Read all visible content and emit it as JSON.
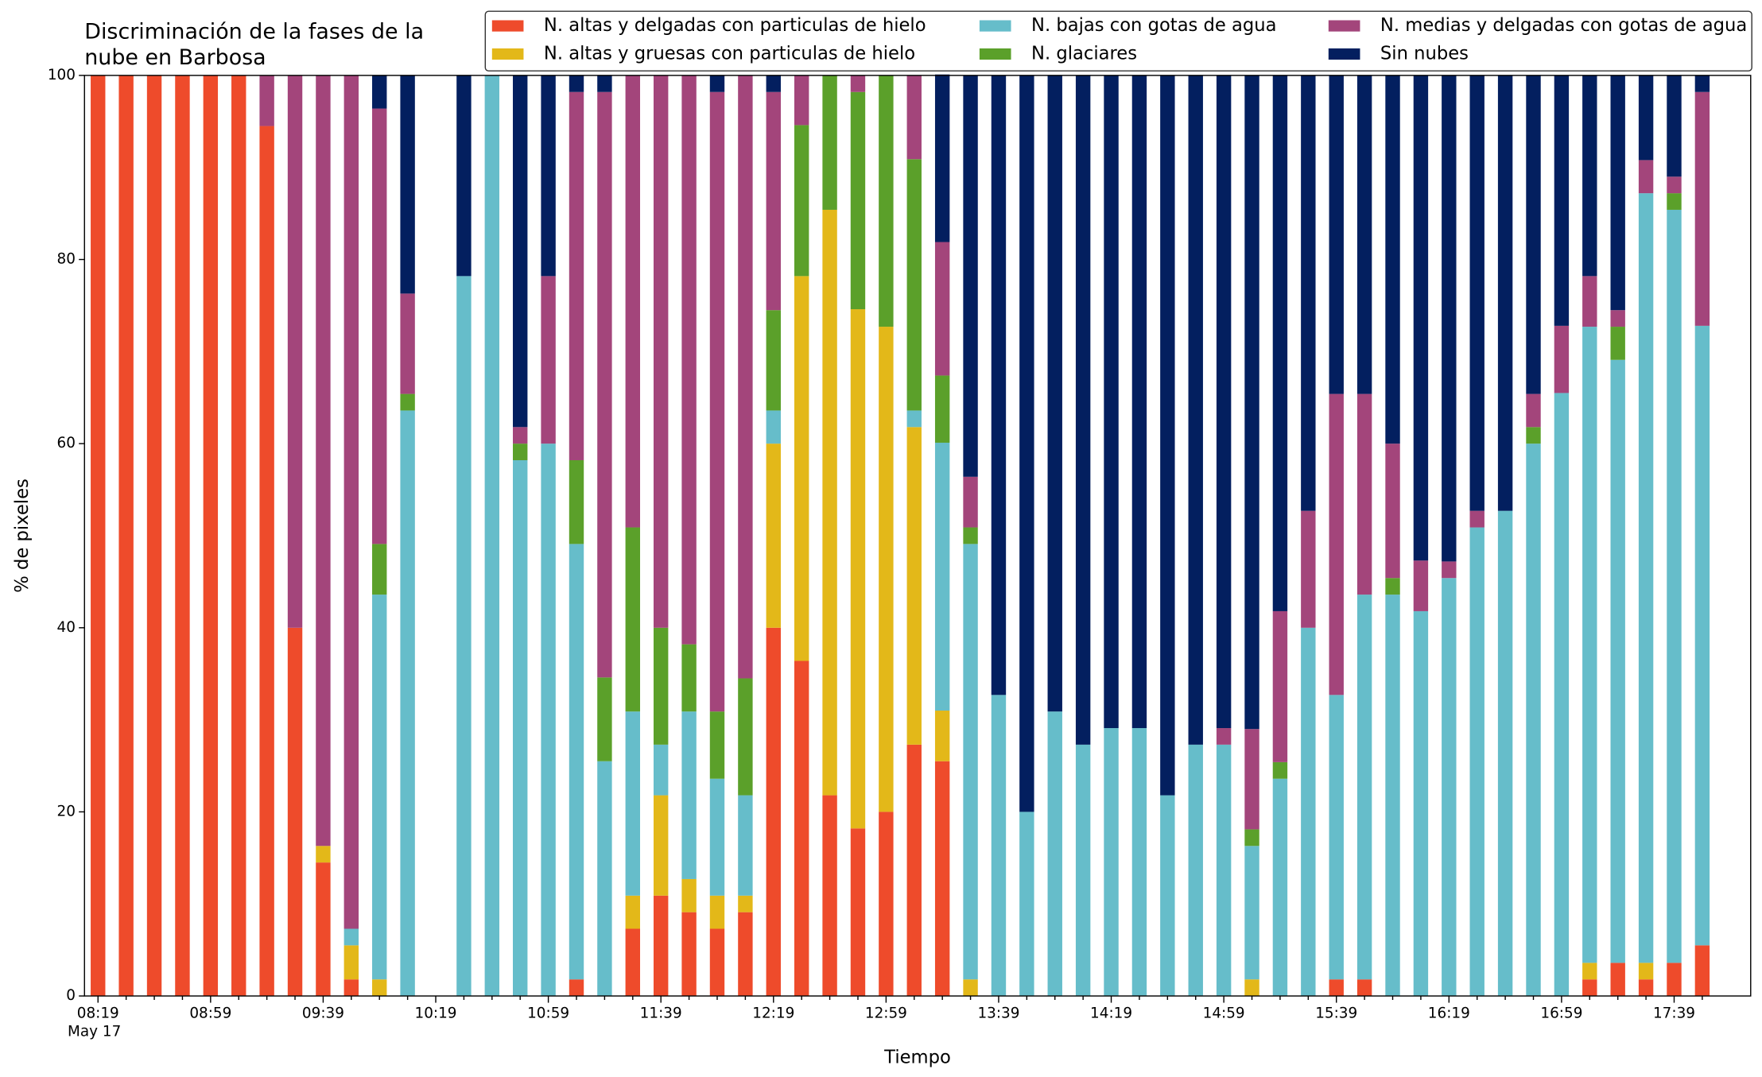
{
  "chart_data": {
    "type": "stacked_bar",
    "title": [
      "Discriminación de la fases de la",
      "nube en Barbosa"
    ],
    "xlabel": "Tiempo",
    "ylabel": "% de pixeles",
    "date_label": "May 17",
    "categories": [
      "08:19",
      null,
      null,
      null,
      "08:59",
      null,
      null,
      null,
      "09:39",
      null,
      null,
      null,
      "10:19",
      null,
      null,
      null,
      "10:59",
      null,
      null,
      null,
      "11:39",
      null,
      null,
      null,
      "12:19",
      null,
      null,
      null,
      "12:59",
      null,
      null,
      null,
      "13:39",
      null,
      null,
      null,
      "14:19",
      null,
      null,
      null,
      "14:59",
      null,
      null,
      null,
      "15:39",
      null,
      null,
      null,
      "16:19",
      null,
      null,
      null,
      "16:59",
      null,
      null,
      null,
      "17:39",
      null
    ],
    "ylim": [
      0,
      100
    ],
    "yticks": [
      0,
      20,
      40,
      60,
      80,
      100
    ],
    "legend": "upper right",
    "series": [
      {
        "name": "N. altas y delgadas con particulas de hielo",
        "color": "#ee4b2b",
        "values": [
          100,
          100,
          100,
          100,
          100,
          100,
          94.5,
          40,
          14.5,
          1.8,
          0,
          0,
          0,
          0,
          0,
          0,
          0,
          1.8,
          0,
          7.3,
          10.9,
          9.1,
          7.3,
          9.1,
          40,
          36.4,
          21.8,
          18.2,
          20,
          27.3,
          25.5,
          0,
          0,
          0,
          0,
          0,
          0,
          0,
          0,
          0,
          0,
          0,
          0,
          0,
          1.8,
          1.8,
          0,
          0,
          0,
          0,
          0,
          0,
          0,
          1.8,
          3.6,
          1.8,
          3.6,
          5.5
        ]
      },
      {
        "name": "N. altas y gruesas con particulas de hielo",
        "color": "#e3b819",
        "values": [
          0,
          0,
          0,
          0,
          0,
          0,
          0,
          0,
          1.8,
          3.7,
          1.8,
          0,
          0,
          0,
          0,
          0,
          0,
          0,
          0,
          3.6,
          10.9,
          3.6,
          3.6,
          1.8,
          20,
          41.8,
          63.6,
          56.4,
          52.7,
          34.5,
          5.5,
          1.8,
          0,
          0,
          0,
          0,
          0,
          0,
          0,
          0,
          0,
          1.8,
          0,
          0,
          0,
          0,
          0,
          0,
          0,
          0,
          0,
          0,
          0,
          1.8,
          0,
          1.8,
          0,
          0
        ]
      },
      {
        "name": "N. bajas con gotas de agua",
        "color": "#66bdca",
        "values": [
          0,
          0,
          0,
          0,
          0,
          0,
          0,
          0,
          0,
          1.8,
          41.8,
          63.6,
          0,
          78.2,
          100,
          58.2,
          60,
          47.3,
          25.5,
          20,
          5.5,
          18.2,
          12.7,
          10.9,
          3.6,
          0,
          0,
          0,
          0,
          1.8,
          29.1,
          47.3,
          32.7,
          20,
          30.9,
          27.3,
          29.1,
          29.1,
          21.8,
          27.3,
          27.3,
          14.5,
          23.6,
          40,
          30.9,
          41.8,
          43.6,
          41.8,
          45.4,
          50.9,
          52.7,
          60,
          65.5,
          69.1,
          65.5,
          83.6,
          81.8,
          67.3
        ]
      },
      {
        "name": "N. glaciares",
        "color": "#5ba02a",
        "values": [
          0,
          0,
          0,
          0,
          0,
          0,
          0,
          0,
          0,
          0,
          5.5,
          1.8,
          0,
          0,
          0,
          1.8,
          0,
          9.1,
          9.1,
          20,
          12.7,
          7.3,
          7.3,
          12.7,
          10.9,
          16.4,
          14.6,
          23.6,
          27.3,
          27.3,
          7.3,
          1.8,
          0,
          0,
          0,
          0,
          0,
          0,
          0,
          0,
          0,
          1.8,
          1.8,
          0,
          0,
          0,
          1.8,
          0,
          0,
          0,
          0,
          1.8,
          0,
          0,
          3.6,
          0,
          1.8,
          0
        ]
      },
      {
        "name": "N. medias y delgadas con gotas de agua",
        "color": "#a3457b",
        "values": [
          0,
          0,
          0,
          0,
          0,
          0,
          5.5,
          60,
          83.7,
          92.7,
          47.3,
          10.9,
          0,
          0,
          0,
          1.8,
          18.2,
          40,
          63.6,
          49.1,
          60,
          61.8,
          67.3,
          65.5,
          23.7,
          5.4,
          0,
          1.8,
          0,
          9.1,
          14.5,
          5.5,
          0,
          0,
          0,
          0,
          0,
          0,
          0,
          0,
          1.8,
          10.9,
          16.4,
          12.7,
          32.7,
          21.8,
          14.6,
          5.5,
          1.8,
          1.8,
          0,
          3.6,
          7.3,
          5.5,
          1.8,
          3.6,
          1.8,
          25.4
        ]
      },
      {
        "name": "Sin nubes",
        "color": "#031f5f",
        "values": [
          0,
          0,
          0,
          0,
          0,
          0,
          0,
          0,
          0,
          0,
          3.6,
          23.7,
          0,
          21.8,
          0,
          38.2,
          21.8,
          1.8,
          1.8,
          0,
          0,
          0,
          1.8,
          0,
          1.8,
          0,
          0,
          0,
          0,
          0,
          18.2,
          43.6,
          67.3,
          80,
          69.1,
          72.7,
          70.9,
          70.9,
          78.2,
          72.7,
          70.9,
          71,
          58.2,
          47.3,
          34.6,
          34.6,
          40,
          52.7,
          52.8,
          47.3,
          47.3,
          34.6,
          27.2,
          21.8,
          25.5,
          9.2,
          11,
          1.8
        ]
      }
    ]
  }
}
